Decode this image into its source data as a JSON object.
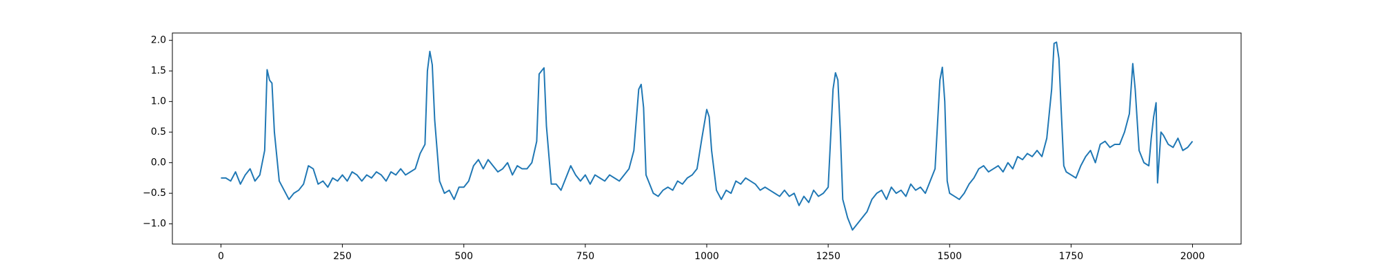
{
  "chart_data": {
    "type": "line",
    "x": [
      0,
      10,
      20,
      30,
      40,
      50,
      60,
      70,
      80,
      90,
      95,
      100,
      105,
      110,
      120,
      130,
      140,
      150,
      160,
      170,
      180,
      190,
      200,
      210,
      220,
      230,
      240,
      250,
      260,
      270,
      280,
      290,
      300,
      310,
      320,
      330,
      340,
      350,
      360,
      370,
      380,
      390,
      400,
      410,
      420,
      425,
      430,
      435,
      440,
      450,
      460,
      470,
      480,
      490,
      500,
      510,
      520,
      530,
      540,
      550,
      560,
      570,
      580,
      590,
      600,
      610,
      620,
      630,
      640,
      650,
      655,
      660,
      665,
      670,
      680,
      690,
      700,
      710,
      720,
      730,
      740,
      750,
      760,
      770,
      780,
      790,
      800,
      810,
      820,
      830,
      840,
      850,
      860,
      865,
      870,
      875,
      880,
      890,
      900,
      910,
      920,
      930,
      940,
      950,
      960,
      970,
      980,
      990,
      1000,
      1005,
      1010,
      1020,
      1030,
      1040,
      1050,
      1060,
      1070,
      1080,
      1090,
      1100,
      1110,
      1120,
      1130,
      1140,
      1150,
      1160,
      1170,
      1180,
      1190,
      1200,
      1210,
      1220,
      1230,
      1240,
      1250,
      1260,
      1265,
      1270,
      1275,
      1280,
      1290,
      1300,
      1310,
      1320,
      1330,
      1340,
      1350,
      1360,
      1370,
      1380,
      1390,
      1400,
      1410,
      1420,
      1430,
      1440,
      1450,
      1460,
      1470,
      1480,
      1485,
      1490,
      1495,
      1500,
      1510,
      1520,
      1530,
      1540,
      1550,
      1560,
      1570,
      1580,
      1590,
      1600,
      1610,
      1620,
      1630,
      1640,
      1650,
      1660,
      1670,
      1680,
      1690,
      1700,
      1710,
      1715,
      1720,
      1725,
      1730,
      1735,
      1740,
      1750,
      1760,
      1770,
      1780,
      1790,
      1800,
      1810,
      1820,
      1830,
      1840,
      1850,
      1860,
      1870,
      1877,
      1882,
      1890,
      1900,
      1910,
      1915,
      1920,
      1925,
      1928,
      1935,
      1940,
      1950,
      1960,
      1970,
      1980,
      1990,
      2000
    ],
    "values": [
      -0.25,
      -0.25,
      -0.3,
      -0.15,
      -0.35,
      -0.2,
      -0.1,
      -0.3,
      -0.2,
      0.2,
      1.52,
      1.35,
      1.3,
      0.5,
      -0.3,
      -0.45,
      -0.6,
      -0.5,
      -0.45,
      -0.35,
      -0.05,
      -0.1,
      -0.35,
      -0.3,
      -0.4,
      -0.25,
      -0.3,
      -0.2,
      -0.3,
      -0.15,
      -0.2,
      -0.3,
      -0.2,
      -0.25,
      -0.15,
      -0.2,
      -0.3,
      -0.15,
      -0.2,
      -0.1,
      -0.2,
      -0.15,
      -0.1,
      0.15,
      0.3,
      1.5,
      1.82,
      1.6,
      0.7,
      -0.3,
      -0.5,
      -0.45,
      -0.6,
      -0.4,
      -0.4,
      -0.3,
      -0.05,
      0.05,
      -0.1,
      0.05,
      -0.05,
      -0.15,
      -0.1,
      0.0,
      -0.2,
      -0.05,
      -0.1,
      -0.1,
      0.0,
      0.35,
      1.45,
      1.5,
      1.55,
      0.6,
      -0.35,
      -0.35,
      -0.45,
      -0.25,
      -0.05,
      -0.2,
      -0.3,
      -0.2,
      -0.35,
      -0.2,
      -0.25,
      -0.3,
      -0.2,
      -0.25,
      -0.3,
      -0.2,
      -0.1,
      0.2,
      1.2,
      1.28,
      0.9,
      -0.2,
      -0.3,
      -0.5,
      -0.55,
      -0.45,
      -0.4,
      -0.45,
      -0.3,
      -0.35,
      -0.25,
      -0.2,
      -0.1,
      0.4,
      0.87,
      0.75,
      0.2,
      -0.45,
      -0.6,
      -0.45,
      -0.5,
      -0.3,
      -0.35,
      -0.25,
      -0.3,
      -0.35,
      -0.45,
      -0.4,
      -0.45,
      -0.5,
      -0.55,
      -0.45,
      -0.55,
      -0.5,
      -0.7,
      -0.55,
      -0.65,
      -0.45,
      -0.55,
      -0.5,
      -0.4,
      1.2,
      1.47,
      1.35,
      0.5,
      -0.6,
      -0.9,
      -1.1,
      -1.0,
      -0.9,
      -0.8,
      -0.6,
      -0.5,
      -0.45,
      -0.6,
      -0.4,
      -0.5,
      -0.45,
      -0.55,
      -0.35,
      -0.45,
      -0.4,
      -0.5,
      -0.3,
      -0.1,
      1.35,
      1.56,
      1.0,
      -0.3,
      -0.5,
      -0.55,
      -0.6,
      -0.5,
      -0.35,
      -0.25,
      -0.1,
      -0.05,
      -0.15,
      -0.1,
      -0.05,
      -0.15,
      0.0,
      -0.1,
      0.1,
      0.05,
      0.15,
      0.1,
      0.2,
      0.1,
      0.4,
      1.2,
      1.95,
      1.97,
      1.7,
      0.8,
      -0.05,
      -0.15,
      -0.2,
      -0.25,
      -0.05,
      0.1,
      0.2,
      0.0,
      0.3,
      0.35,
      0.25,
      0.3,
      0.3,
      0.5,
      0.8,
      1.62,
      1.2,
      0.2,
      0.0,
      -0.05,
      0.4,
      0.75,
      0.98,
      -0.33,
      0.5,
      0.45,
      0.3,
      0.25,
      0.4,
      0.2,
      0.25,
      0.35
    ],
    "color": "#1f77b4",
    "xlim": [
      -100,
      2100
    ],
    "xticks": [
      0,
      250,
      500,
      750,
      1000,
      1250,
      1500,
      1750,
      2000
    ],
    "ylim": [
      -1.33,
      2.12
    ],
    "yticks": [
      {
        "value": -1,
        "label": "−1.0"
      },
      {
        "value": -0.5,
        "label": "−0.5"
      },
      {
        "value": 0,
        "label": "0.0"
      },
      0.5,
      {
        "value": 1,
        "label": "1.0"
      },
      1.5,
      {
        "value": 2,
        "label": "2.0"
      }
    ]
  }
}
